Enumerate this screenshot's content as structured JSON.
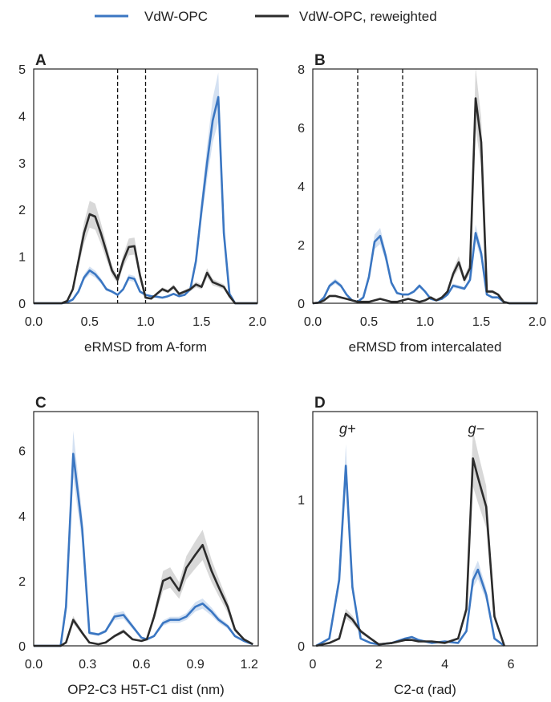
{
  "legend": [
    {
      "label": "VdW-OPC",
      "color": "#3a76c2"
    },
    {
      "label": "VdW-OPC, reweighted",
      "color": "#2b2b2b"
    }
  ],
  "chart_data": [
    {
      "panel": "A",
      "type": "line",
      "xlabel": "eRMSD from A-form",
      "ylabel": "",
      "xlim": [
        0,
        2.0
      ],
      "ylim": [
        0,
        5
      ],
      "xticks": [
        "0.0",
        "0.5",
        "1.0",
        "1.5",
        "2.0"
      ],
      "yticks": [
        "0",
        "1",
        "2",
        "3",
        "4",
        "5"
      ],
      "vlines": [
        0.75,
        1.0
      ],
      "annotations": [],
      "x": [
        0.0,
        0.25,
        0.3,
        0.35,
        0.4,
        0.45,
        0.5,
        0.55,
        0.6,
        0.65,
        0.7,
        0.75,
        0.8,
        0.85,
        0.9,
        0.95,
        1.0,
        1.05,
        1.1,
        1.15,
        1.2,
        1.25,
        1.3,
        1.35,
        1.4,
        1.45,
        1.5,
        1.55,
        1.6,
        1.65,
        1.7,
        1.75,
        1.8,
        2.0
      ],
      "series": [
        {
          "name": "VdW-OPC",
          "color": "#3a76c2",
          "values": [
            0,
            0,
            0.02,
            0.08,
            0.25,
            0.55,
            0.7,
            0.62,
            0.48,
            0.3,
            0.25,
            0.18,
            0.3,
            0.55,
            0.52,
            0.25,
            0.18,
            0.15,
            0.14,
            0.12,
            0.15,
            0.2,
            0.15,
            0.18,
            0.3,
            0.9,
            2.0,
            3.0,
            3.9,
            4.4,
            1.5,
            0.2,
            0,
            0
          ]
        },
        {
          "name": "VdW-OPC, reweighted",
          "color": "#2b2b2b",
          "values": [
            0,
            0,
            0.05,
            0.3,
            0.9,
            1.5,
            1.9,
            1.85,
            1.5,
            1.1,
            0.7,
            0.5,
            0.9,
            1.2,
            1.22,
            0.6,
            0.12,
            0.1,
            0.2,
            0.3,
            0.25,
            0.35,
            0.2,
            0.25,
            0.3,
            0.4,
            0.35,
            0.65,
            0.45,
            0.4,
            0.35,
            0.15,
            0,
            0
          ]
        }
      ]
    },
    {
      "panel": "B",
      "type": "line",
      "xlabel": "eRMSD from intercalated",
      "ylabel": "",
      "xlim": [
        0,
        2.0
      ],
      "ylim": [
        0,
        8
      ],
      "xticks": [
        "0.0",
        "0.5",
        "1.0",
        "1.5",
        "2.0"
      ],
      "yticks": [
        "0",
        "2",
        "4",
        "6",
        "8"
      ],
      "vlines": [
        0.4,
        0.8
      ],
      "annotations": [],
      "x": [
        0.0,
        0.05,
        0.1,
        0.15,
        0.2,
        0.25,
        0.3,
        0.35,
        0.4,
        0.45,
        0.5,
        0.55,
        0.6,
        0.65,
        0.7,
        0.75,
        0.8,
        0.85,
        0.9,
        0.95,
        1.0,
        1.05,
        1.1,
        1.15,
        1.2,
        1.25,
        1.3,
        1.35,
        1.4,
        1.45,
        1.5,
        1.55,
        1.6,
        1.65,
        1.7,
        1.75,
        2.0
      ],
      "series": [
        {
          "name": "VdW-OPC",
          "color": "#3a76c2",
          "values": [
            0,
            0.02,
            0.2,
            0.6,
            0.75,
            0.6,
            0.3,
            0.1,
            0.05,
            0.2,
            0.9,
            2.1,
            2.3,
            1.6,
            0.7,
            0.35,
            0.3,
            0.3,
            0.4,
            0.6,
            0.4,
            0.15,
            0.1,
            0.15,
            0.3,
            0.6,
            0.55,
            0.5,
            0.8,
            2.4,
            1.7,
            0.3,
            0.2,
            0.2,
            0.05,
            0,
            0
          ]
        },
        {
          "name": "VdW-OPC, reweighted",
          "color": "#2b2b2b",
          "values": [
            0,
            0.02,
            0.1,
            0.25,
            0.25,
            0.2,
            0.15,
            0.1,
            0.05,
            0.05,
            0.05,
            0.1,
            0.15,
            0.1,
            0.05,
            0.05,
            0.1,
            0.15,
            0.1,
            0.05,
            0.1,
            0.2,
            0.1,
            0.2,
            0.4,
            1.0,
            1.4,
            0.8,
            1.2,
            7.0,
            5.5,
            0.4,
            0.4,
            0.3,
            0.05,
            0,
            0
          ]
        }
      ]
    },
    {
      "panel": "C",
      "type": "line",
      "xlabel": "OP2-C3 H5T-C1 dist (nm)",
      "ylabel": "",
      "xlim": [
        0,
        1.25
      ],
      "ylim": [
        0,
        7.2
      ],
      "xticks": [
        "0.0",
        "0.3",
        "0.6",
        "0.9",
        "1.2"
      ],
      "xtick_values": [
        0,
        0.3,
        0.6,
        0.9,
        1.2
      ],
      "yticks": [
        "0",
        "2",
        "4",
        "6"
      ],
      "vlines": [],
      "annotations": [],
      "x": [
        0.0,
        0.1,
        0.15,
        0.18,
        0.22,
        0.27,
        0.31,
        0.36,
        0.4,
        0.45,
        0.5,
        0.55,
        0.6,
        0.63,
        0.67,
        0.72,
        0.76,
        0.81,
        0.85,
        0.9,
        0.94,
        0.99,
        1.03,
        1.08,
        1.12,
        1.17,
        1.22
      ],
      "series": [
        {
          "name": "VdW-OPC",
          "color": "#3a76c2",
          "values": [
            0,
            0,
            0,
            1.2,
            5.9,
            3.6,
            0.4,
            0.35,
            0.45,
            0.9,
            0.95,
            0.6,
            0.25,
            0.2,
            0.3,
            0.7,
            0.8,
            0.8,
            0.9,
            1.2,
            1.3,
            1.05,
            0.8,
            0.6,
            0.3,
            0.15,
            0.05
          ]
        },
        {
          "name": "VdW-OPC, reweighted",
          "color": "#2b2b2b",
          "values": [
            0,
            0,
            0,
            0.1,
            0.8,
            0.4,
            0.1,
            0.05,
            0.1,
            0.3,
            0.45,
            0.2,
            0.15,
            0.2,
            0.9,
            2.0,
            2.1,
            1.7,
            2.4,
            2.8,
            3.1,
            2.3,
            1.8,
            1.2,
            0.5,
            0.2,
            0.05
          ]
        }
      ]
    },
    {
      "panel": "D",
      "type": "line",
      "xlabel": "C2-α (rad)",
      "ylabel": "",
      "xlim": [
        0,
        6.8
      ],
      "ylim": [
        0,
        1.6
      ],
      "xticks": [
        "0",
        "2",
        "4",
        "6"
      ],
      "xtick_values": [
        0,
        2,
        4,
        6
      ],
      "yticks": [
        "0",
        "1"
      ],
      "vlines": [],
      "annotations": [
        {
          "text": "g+",
          "x": 1.05,
          "y": 1.45
        },
        {
          "text": "g−",
          "x": 4.95,
          "y": 1.45
        }
      ],
      "x": [
        0.1,
        0.5,
        0.8,
        1.0,
        1.2,
        1.45,
        1.75,
        2.0,
        2.4,
        2.8,
        3.0,
        3.2,
        3.6,
        4.0,
        4.4,
        4.65,
        4.85,
        5.0,
        5.25,
        5.5,
        5.8
      ],
      "series": [
        {
          "name": "VdW-OPC",
          "color": "#3a76c2",
          "values": [
            0,
            0.05,
            0.45,
            1.23,
            0.4,
            0.05,
            0.02,
            0.01,
            0.02,
            0.05,
            0.06,
            0.04,
            0.02,
            0.03,
            0.02,
            0.1,
            0.45,
            0.52,
            0.35,
            0.05,
            0
          ]
        },
        {
          "name": "VdW-OPC, reweighted",
          "color": "#2b2b2b",
          "values": [
            0,
            0.02,
            0.05,
            0.22,
            0.18,
            0.1,
            0.05,
            0.01,
            0.02,
            0.04,
            0.04,
            0.03,
            0.03,
            0.02,
            0.05,
            0.25,
            1.28,
            1.15,
            0.95,
            0.2,
            0
          ]
        }
      ]
    }
  ]
}
